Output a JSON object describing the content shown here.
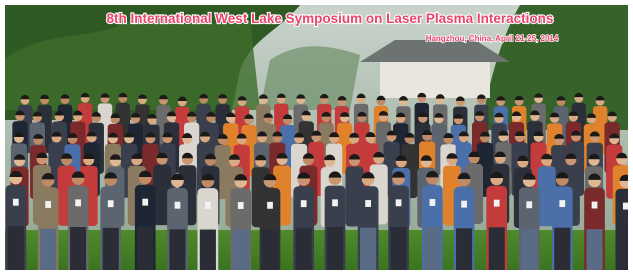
{
  "banner": {
    "title": "8th International West Lake Symposium on Laser Plasma Interactions",
    "subtitle": "Hangzhou, China, April 21-25, 2014"
  }
}
